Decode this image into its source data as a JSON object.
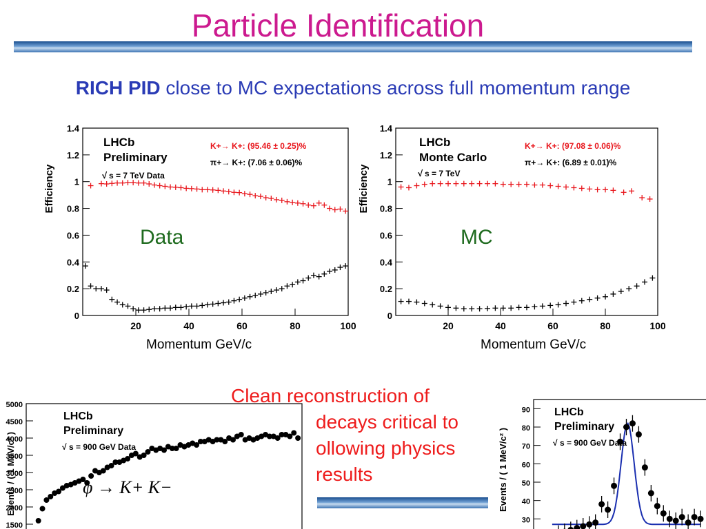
{
  "slide": {
    "title": "Particle Identification",
    "subtitle_bold": "RICH PID",
    "subtitle_rest": " close to MC expectations across full momentum range"
  },
  "labels": {
    "data_region": "Data",
    "mc_region": "MC",
    "momentum_left": "Momentum GeV/c",
    "momentum_right": "Momentum GeV/c"
  },
  "note": {
    "lines": [
      "Clean reconstruction of",
      "decays critical to",
      "ollowing physics",
      "results"
    ]
  },
  "colors": {
    "title": "#cc1a8f",
    "subtitle": "#2a3bb5",
    "kaon_series": "#e8151b",
    "pion_series": "#000000",
    "fit_curve": "#1a2fb0",
    "note": "#ee1c1c"
  },
  "chart_data": [
    {
      "type": "scatter",
      "id": "eff_data",
      "xlim": [
        0,
        100
      ],
      "ylim": [
        0,
        1.4
      ],
      "xticks": [
        "20",
        "40",
        "60",
        "80",
        "100"
      ],
      "yticks": [
        "0",
        "0.2",
        "0.4",
        "0.6",
        "0.8",
        "1",
        "1.2",
        "1.4"
      ],
      "ylabel": "Efficiency",
      "legend_title": [
        "LHCb",
        "Preliminary"
      ],
      "energy_label": "s = 7 TeV Data",
      "legend_entries": [
        "K+→ K+: (95.46 ± 0.25)%",
        "π+→ K+: (7.06 ± 0.06)%"
      ],
      "series": [
        {
          "name": "K+→ K+: (95.46 ± 0.25)%",
          "color": "#e8151b",
          "x": [
            3,
            7,
            9,
            11,
            13,
            15,
            17,
            19,
            21,
            23,
            25,
            27,
            29,
            31,
            33,
            35,
            37,
            39,
            41,
            43,
            45,
            47,
            49,
            51,
            53,
            55,
            57,
            59,
            61,
            63,
            65,
            67,
            69,
            71,
            73,
            75,
            77,
            79,
            81,
            83,
            85,
            87,
            89,
            91,
            93,
            95,
            97,
            99
          ],
          "y": [
            0.97,
            0.985,
            0.983,
            0.987,
            0.99,
            0.99,
            0.993,
            0.993,
            0.99,
            0.99,
            0.983,
            0.975,
            0.97,
            0.965,
            0.96,
            0.958,
            0.955,
            0.95,
            0.948,
            0.945,
            0.94,
            0.94,
            0.938,
            0.935,
            0.93,
            0.925,
            0.92,
            0.918,
            0.91,
            0.905,
            0.895,
            0.89,
            0.88,
            0.875,
            0.865,
            0.86,
            0.85,
            0.845,
            0.84,
            0.835,
            0.825,
            0.82,
            0.84,
            0.825,
            0.8,
            0.79,
            0.795,
            0.78
          ]
        },
        {
          "name": "π+→ K+: (7.06 ± 0.06)%",
          "color": "#000000",
          "x": [
            1,
            3,
            5,
            7,
            9,
            11,
            13,
            15,
            17,
            19,
            21,
            23,
            25,
            27,
            29,
            31,
            33,
            35,
            37,
            39,
            41,
            43,
            45,
            47,
            49,
            51,
            53,
            55,
            57,
            59,
            61,
            63,
            65,
            67,
            69,
            71,
            73,
            75,
            77,
            79,
            81,
            83,
            85,
            87,
            89,
            91,
            93,
            95,
            97,
            99
          ],
          "y": [
            0.37,
            0.22,
            0.2,
            0.2,
            0.19,
            0.12,
            0.1,
            0.08,
            0.07,
            0.05,
            0.04,
            0.04,
            0.045,
            0.05,
            0.05,
            0.055,
            0.055,
            0.06,
            0.06,
            0.065,
            0.07,
            0.07,
            0.075,
            0.08,
            0.085,
            0.09,
            0.095,
            0.1,
            0.11,
            0.12,
            0.13,
            0.14,
            0.15,
            0.16,
            0.17,
            0.18,
            0.19,
            0.2,
            0.22,
            0.23,
            0.25,
            0.26,
            0.28,
            0.3,
            0.29,
            0.31,
            0.33,
            0.34,
            0.36,
            0.37
          ]
        }
      ]
    },
    {
      "type": "scatter",
      "id": "eff_mc",
      "xlim": [
        0,
        100
      ],
      "ylim": [
        0,
        1.4
      ],
      "xticks": [
        "20",
        "40",
        "60",
        "80",
        "100"
      ],
      "yticks": [
        "0",
        "0.2",
        "0.4",
        "0.6",
        "0.8",
        "1",
        "1.2",
        "1.4"
      ],
      "ylabel": "Efficiency",
      "legend_title": [
        "LHCb",
        "Monte Carlo"
      ],
      "energy_label": "s = 7 TeV",
      "legend_entries": [
        "K+→ K+: (97.08 ± 0.06)%",
        "π+→ K+: (6.89 ± 0.01)%"
      ],
      "series": [
        {
          "name": "K+→ K+: (97.08 ± 0.06)%",
          "color": "#e8151b",
          "x": [
            2,
            5,
            8,
            11,
            14,
            17,
            20,
            23,
            26,
            29,
            32,
            35,
            38,
            41,
            44,
            47,
            50,
            53,
            56,
            59,
            62,
            65,
            68,
            71,
            74,
            77,
            80,
            83,
            87,
            90,
            94,
            97
          ],
          "y": [
            0.96,
            0.955,
            0.97,
            0.98,
            0.985,
            0.985,
            0.985,
            0.985,
            0.985,
            0.985,
            0.985,
            0.985,
            0.985,
            0.98,
            0.98,
            0.98,
            0.98,
            0.975,
            0.975,
            0.97,
            0.965,
            0.96,
            0.955,
            0.95,
            0.945,
            0.94,
            0.94,
            0.935,
            0.92,
            0.93,
            0.88,
            0.87
          ]
        },
        {
          "name": "π+→ K+: (6.89 ± 0.01)%",
          "color": "#000000",
          "x": [
            2,
            5,
            8,
            11,
            14,
            17,
            20,
            23,
            26,
            29,
            32,
            35,
            38,
            41,
            44,
            47,
            50,
            53,
            56,
            59,
            62,
            65,
            68,
            71,
            74,
            77,
            80,
            83,
            86,
            89,
            92,
            95,
            98
          ],
          "y": [
            0.105,
            0.105,
            0.1,
            0.09,
            0.08,
            0.07,
            0.06,
            0.055,
            0.05,
            0.05,
            0.05,
            0.052,
            0.055,
            0.055,
            0.055,
            0.06,
            0.06,
            0.065,
            0.07,
            0.075,
            0.08,
            0.09,
            0.1,
            0.11,
            0.12,
            0.13,
            0.14,
            0.16,
            0.18,
            0.2,
            0.22,
            0.25,
            0.28
          ]
        }
      ]
    },
    {
      "type": "scatter",
      "id": "phi_mass",
      "ylim": [
        0,
        5000
      ],
      "yticks": [
        "1500",
        "2000",
        "2500",
        "3000",
        "3500",
        "4000",
        "4500",
        "5000"
      ],
      "ylabel": "Events / ( 1 MeV/c² )",
      "legend_title": [
        "LHCb",
        "Preliminary"
      ],
      "energy_label": "s = 900 GeV Data",
      "decay_label": "φ → K+ K−",
      "series": [
        {
          "name": "",
          "color": "#000000",
          "x": [
            1,
            2,
            3,
            4,
            5,
            6,
            7,
            8,
            9,
            10,
            11,
            12,
            13,
            14,
            15,
            16,
            17,
            18,
            19,
            20,
            21,
            22,
            23,
            24,
            25,
            26,
            27,
            28,
            29,
            30,
            31,
            32,
            33,
            34,
            35,
            36,
            37,
            38,
            39,
            40,
            41,
            42,
            43,
            44,
            45,
            46,
            47,
            48,
            49,
            50,
            51,
            52,
            53,
            54,
            55,
            56,
            57,
            58,
            59,
            60,
            61,
            62,
            63,
            64,
            65
          ],
          "y": [
            1600,
            1950,
            2200,
            2300,
            2400,
            2450,
            2550,
            2620,
            2650,
            2700,
            2750,
            2800,
            2700,
            2900,
            3050,
            3000,
            3050,
            3150,
            3200,
            3300,
            3300,
            3350,
            3400,
            3500,
            3550,
            3450,
            3500,
            3600,
            3700,
            3650,
            3700,
            3650,
            3750,
            3700,
            3700,
            3800,
            3750,
            3800,
            3850,
            3800,
            3900,
            3900,
            3950,
            3900,
            3950,
            3950,
            3900,
            4000,
            3950,
            4050,
            4100,
            3950,
            4000,
            3950,
            4000,
            4050,
            4100,
            4050,
            4050,
            4000,
            4100,
            4100,
            4050,
            4150,
            4000
          ]
        }
      ]
    },
    {
      "type": "scatter",
      "id": "second_mass",
      "ylim": [
        20,
        95
      ],
      "yticks": [
        "30",
        "40",
        "50",
        "60",
        "70",
        "80",
        "90"
      ],
      "ylabel": "Events / ( 1 MeV/c² )",
      "legend_title": [
        "LHCb",
        "Preliminary"
      ],
      "energy_label": "s = 900 GeV Data",
      "series": [
        {
          "name": "",
          "color": "#000000",
          "x": [
            1,
            2,
            3,
            4,
            5,
            6,
            7,
            8,
            9,
            10,
            11,
            12,
            13,
            14,
            15,
            16,
            17,
            18,
            19,
            20,
            21,
            22,
            23,
            24
          ],
          "y": [
            22,
            23,
            24,
            25,
            26,
            27,
            28,
            38,
            35,
            48,
            72,
            80,
            82,
            76,
            58,
            44,
            37,
            33,
            30,
            29,
            31,
            28,
            31,
            30
          ]
        }
      ]
    }
  ]
}
